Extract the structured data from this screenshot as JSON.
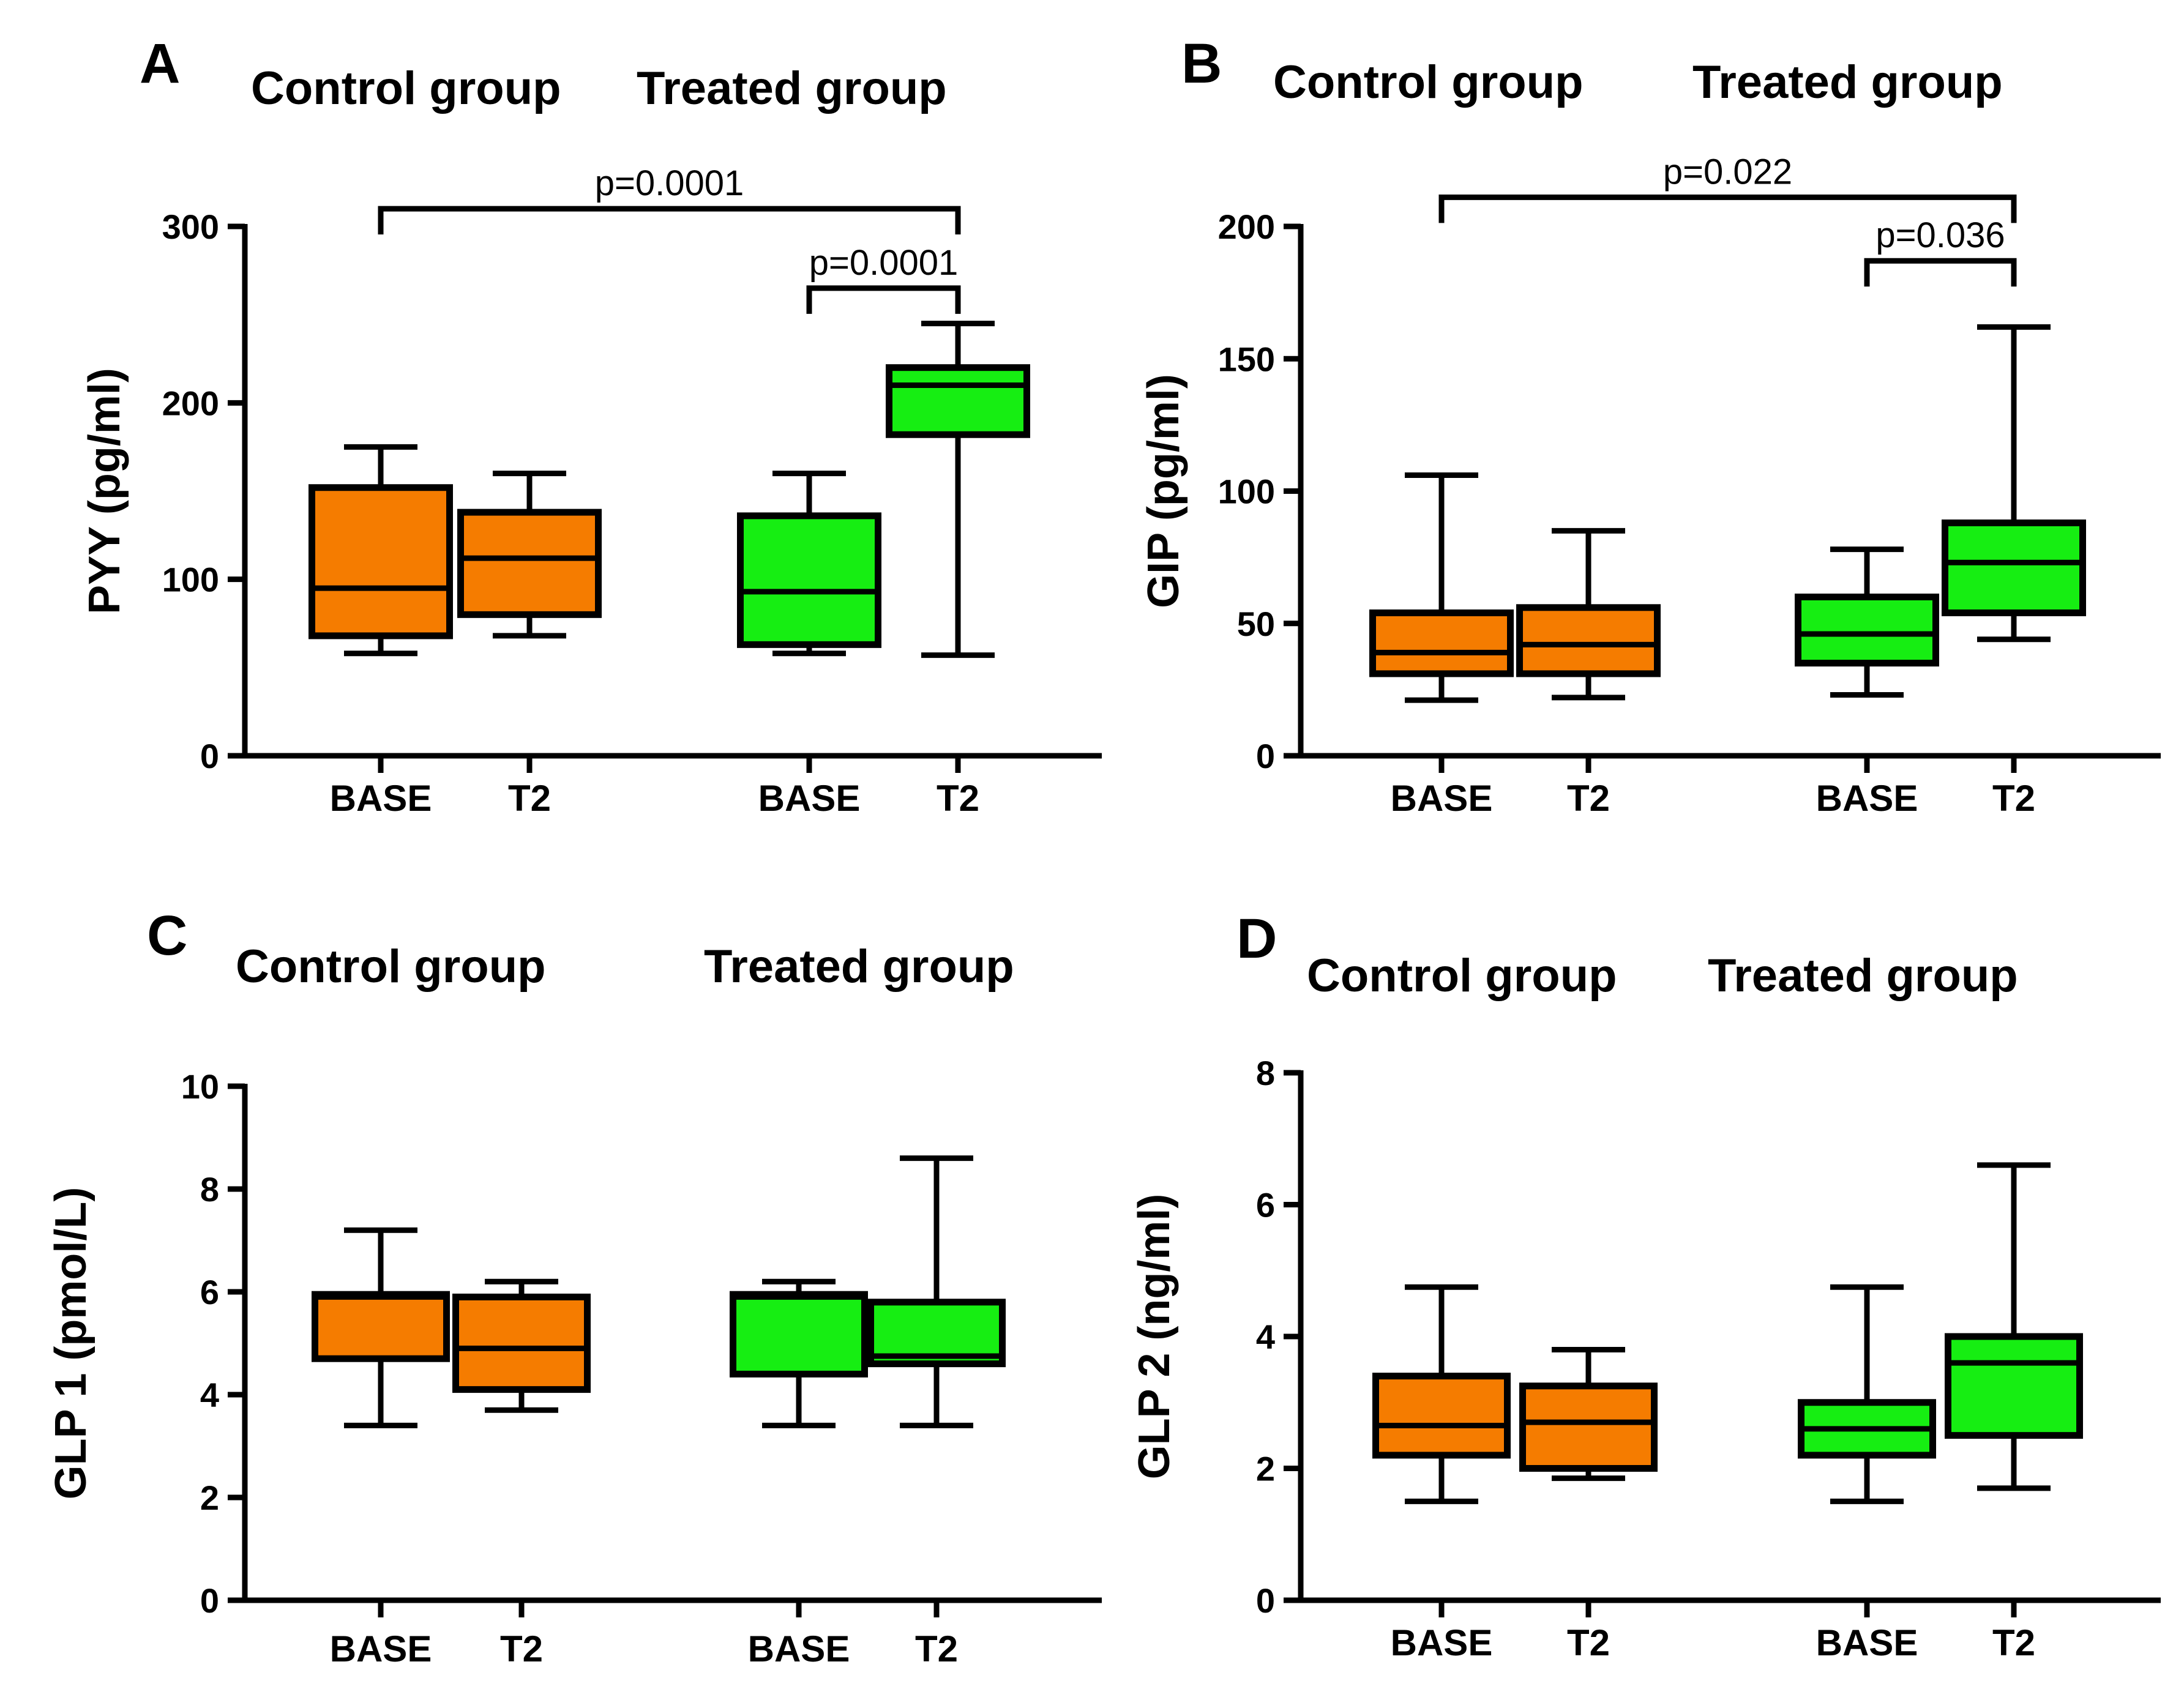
{
  "colors": {
    "control": "#f57c00",
    "treated": "#16ee12",
    "line": "#000000"
  },
  "chart_data": [
    {
      "type": "boxplot",
      "panel": "A",
      "group_titles": [
        "Control group",
        "Treated group"
      ],
      "ylabel": "PYY (pg/ml)",
      "ylim": [
        0,
        300
      ],
      "yticks": [
        0,
        100,
        200,
        300
      ],
      "categories": [
        "BASE",
        "T2",
        "BASE",
        "T2"
      ],
      "series": [
        {
          "name": "Control group",
          "category": "BASE",
          "min": 58,
          "q1": 68,
          "median": 95,
          "q3": 152,
          "max": 175
        },
        {
          "name": "Control group",
          "category": "T2",
          "min": 68,
          "q1": 80,
          "median": 112,
          "q3": 138,
          "max": 160
        },
        {
          "name": "Treated group",
          "category": "BASE",
          "min": 58,
          "q1": 63,
          "median": 93,
          "q3": 136,
          "max": 160
        },
        {
          "name": "Treated group",
          "category": "T2",
          "min": 57,
          "q1": 182,
          "median": 210,
          "q3": 220,
          "max": 245
        }
      ],
      "significance": [
        {
          "label": "p=0.0001",
          "from": 0,
          "to": 3,
          "y": 310
        },
        {
          "label": "p=0.0001",
          "from": 2,
          "to": 3,
          "y": 265
        }
      ]
    },
    {
      "type": "boxplot",
      "panel": "B",
      "group_titles": [
        "Control group",
        "Treated  group"
      ],
      "ylabel": "GIP (pg/ml)",
      "ylim": [
        0,
        200
      ],
      "yticks": [
        0,
        50,
        100,
        150,
        200
      ],
      "categories": [
        "BASE",
        "T2",
        "BASE",
        "T2"
      ],
      "series": [
        {
          "name": "Control group",
          "category": "BASE",
          "min": 21,
          "q1": 31,
          "median": 39,
          "q3": 54,
          "max": 106
        },
        {
          "name": "Control group",
          "category": "T2",
          "min": 22,
          "q1": 31,
          "median": 42,
          "q3": 56,
          "max": 85
        },
        {
          "name": "Treated group",
          "category": "BASE",
          "min": 23,
          "q1": 35,
          "median": 46,
          "q3": 60,
          "max": 78
        },
        {
          "name": "Treated group",
          "category": "T2",
          "min": 44,
          "q1": 54,
          "median": 73,
          "q3": 88,
          "max": 162
        }
      ],
      "significance": [
        {
          "label": "p=0.022",
          "from": 0,
          "to": 3,
          "y": 211
        },
        {
          "label": "p=0.036",
          "from": 2,
          "to": 3,
          "y": 187
        }
      ]
    },
    {
      "type": "boxplot",
      "panel": "C",
      "group_titles": [
        "Control group",
        "Treated group"
      ],
      "ylabel": "GLP 1 (pmol/L)",
      "ylim": [
        0,
        10
      ],
      "yticks": [
        0,
        2,
        4,
        6,
        8,
        10
      ],
      "categories": [
        "BASE",
        "T2",
        "BASE",
        "T2"
      ],
      "series": [
        {
          "name": "Control group",
          "category": "BASE",
          "min": 3.4,
          "q1": 4.7,
          "median": 5.9,
          "q3": 5.95,
          "max": 7.2
        },
        {
          "name": "Control group",
          "category": "T2",
          "min": 3.7,
          "q1": 4.1,
          "median": 4.9,
          "q3": 5.9,
          "max": 6.2
        },
        {
          "name": "Treated group",
          "category": "BASE",
          "min": 3.4,
          "q1": 4.4,
          "median": 5.9,
          "q3": 5.95,
          "max": 6.2
        },
        {
          "name": "Treated group",
          "category": "T2",
          "min": 3.4,
          "q1": 4.6,
          "median": 4.75,
          "q3": 5.8,
          "max": 8.6
        }
      ],
      "significance": []
    },
    {
      "type": "boxplot",
      "panel": "D",
      "group_titles": [
        "Control group",
        "Treated group"
      ],
      "ylabel": "GLP 2 (ng/ml)",
      "ylim": [
        0,
        8
      ],
      "yticks": [
        0,
        2,
        4,
        6,
        8
      ],
      "categories": [
        "BASE",
        "T2",
        "BASE",
        "T2"
      ],
      "series": [
        {
          "name": "Control group",
          "category": "BASE",
          "min": 1.5,
          "q1": 2.2,
          "median": 2.65,
          "q3": 3.4,
          "max": 4.75
        },
        {
          "name": "Control group",
          "category": "T2",
          "min": 1.85,
          "q1": 2.0,
          "median": 2.7,
          "q3": 3.25,
          "max": 3.8
        },
        {
          "name": "Treated group",
          "category": "BASE",
          "min": 1.5,
          "q1": 2.2,
          "median": 2.6,
          "q3": 3.0,
          "max": 4.75
        },
        {
          "name": "Treated group",
          "category": "T2",
          "min": 1.7,
          "q1": 2.5,
          "median": 3.6,
          "q3": 4.0,
          "max": 6.6
        }
      ],
      "significance": []
    }
  ]
}
